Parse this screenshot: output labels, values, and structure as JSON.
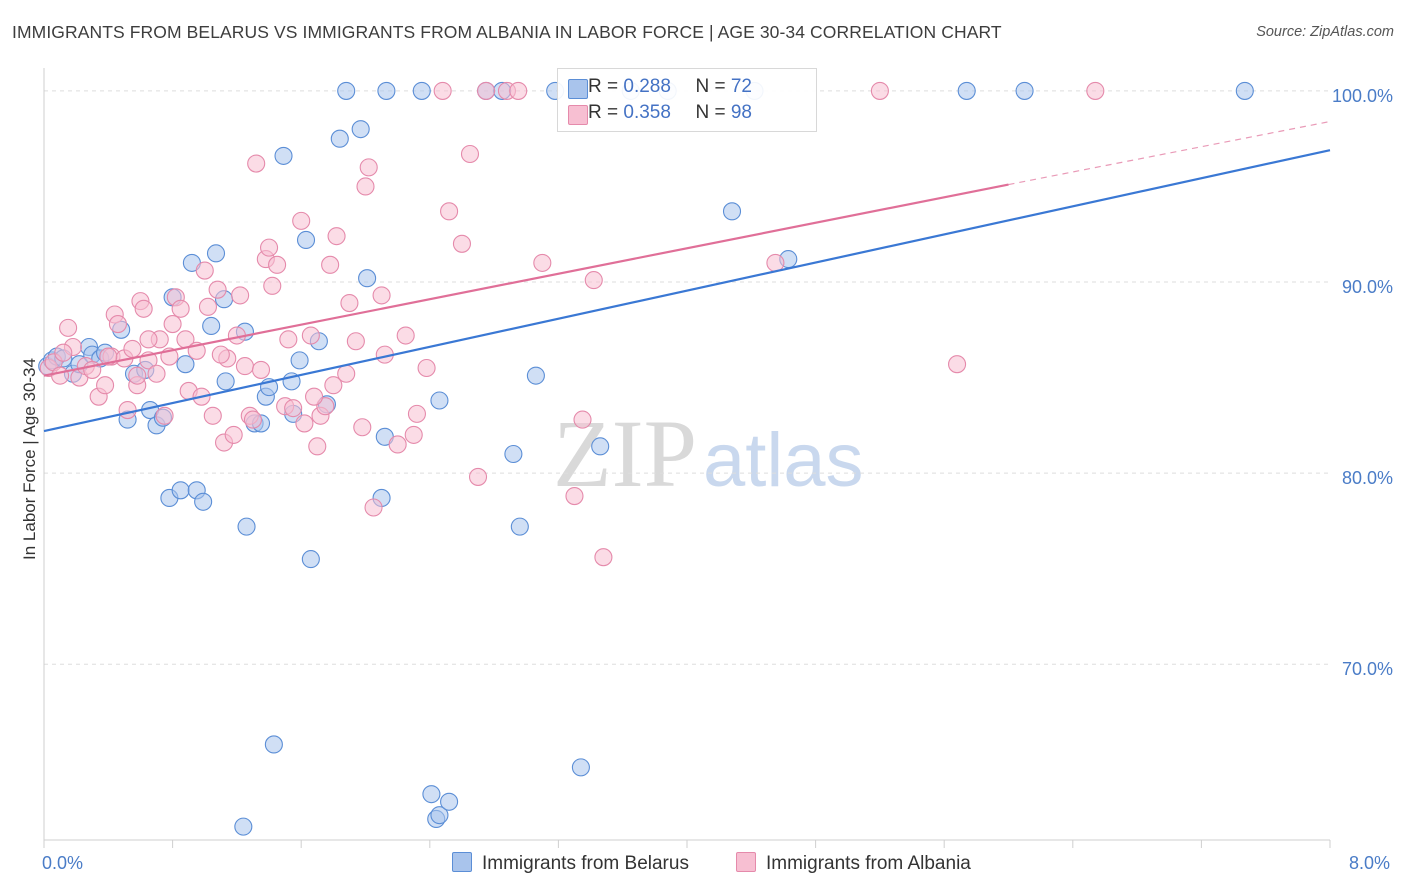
{
  "header": {
    "title": "IMMIGRANTS FROM BELARUS VS IMMIGRANTS FROM ALBANIA IN LABOR FORCE | AGE 30-34 CORRELATION CHART",
    "source": "Source: ZipAtlas.com"
  },
  "legend": {
    "belarus": {
      "r_label": "R = ",
      "r_value": "0.288",
      "n_label": "N = ",
      "n_value": "72"
    },
    "albania": {
      "r_label": "R = ",
      "r_value": "0.358",
      "n_label": "N = ",
      "n_value": "98"
    }
  },
  "watermark": {
    "zip": "ZIP",
    "atlas": "atlas"
  },
  "colors": {
    "belarus_fill": "#a9c4ec",
    "belarus_stroke": "#5b8ed6",
    "belarus_line": "#3a78d4",
    "albania_fill": "#f7bfd2",
    "albania_stroke": "#e58aab",
    "albania_line": "#e06f98",
    "axis_label": "#4a7cc7",
    "grid": "#dddddd"
  },
  "chart_data": {
    "type": "scatter",
    "title": "IMMIGRANTS FROM BELARUS VS IMMIGRANTS FROM ALBANIA IN LABOR FORCE | AGE 30-34 CORRELATION CHART",
    "xlabel": "",
    "ylabel": "In Labor Force | Age 30-34",
    "xlim": [
      0,
      8
    ],
    "ylim": [
      60.8,
      101.2
    ],
    "x_tick_labels": [
      "0.0%",
      "8.0%"
    ],
    "y_ticks": [
      70,
      80,
      90,
      100
    ],
    "y_tick_labels": [
      "70.0%",
      "80.0%",
      "90.0%",
      "100.0%"
    ],
    "grid": true,
    "legend_position": "top-center",
    "series": [
      {
        "name": "Immigrants from Belarus",
        "r": 0.288,
        "n": 72,
        "trend": {
          "x0": 0,
          "y0": 82.2,
          "x1": 8,
          "y1": 96.9
        },
        "points": [
          [
            0.02,
            85.6
          ],
          [
            0.05,
            85.9
          ],
          [
            0.08,
            86.1
          ],
          [
            0.12,
            86.0
          ],
          [
            0.18,
            85.2
          ],
          [
            0.22,
            85.7
          ],
          [
            0.28,
            86.6
          ],
          [
            0.3,
            86.2
          ],
          [
            0.35,
            86.0
          ],
          [
            0.38,
            86.3
          ],
          [
            0.48,
            87.5
          ],
          [
            0.52,
            82.8
          ],
          [
            0.56,
            85.2
          ],
          [
            0.63,
            85.4
          ],
          [
            0.66,
            83.3
          ],
          [
            0.7,
            82.5
          ],
          [
            0.74,
            82.9
          ],
          [
            0.78,
            78.7
          ],
          [
            0.8,
            89.2
          ],
          [
            0.85,
            79.1
          ],
          [
            0.88,
            85.7
          ],
          [
            0.92,
            91.0
          ],
          [
            0.95,
            79.1
          ],
          [
            0.99,
            78.5
          ],
          [
            1.04,
            87.7
          ],
          [
            1.07,
            91.5
          ],
          [
            1.12,
            89.1
          ],
          [
            1.13,
            84.8
          ],
          [
            1.24,
            61.5
          ],
          [
            1.25,
            87.4
          ],
          [
            1.26,
            77.2
          ],
          [
            1.31,
            82.6
          ],
          [
            1.35,
            82.6
          ],
          [
            1.38,
            84.0
          ],
          [
            1.4,
            84.5
          ],
          [
            1.43,
            65.8
          ],
          [
            1.49,
            96.6
          ],
          [
            1.54,
            84.8
          ],
          [
            1.55,
            83.1
          ],
          [
            1.59,
            85.9
          ],
          [
            1.63,
            92.2
          ],
          [
            1.66,
            75.5
          ],
          [
            1.71,
            86.9
          ],
          [
            1.76,
            83.6
          ],
          [
            1.84,
            97.5
          ],
          [
            1.88,
            100.0
          ],
          [
            1.97,
            98.0
          ],
          [
            2.01,
            90.2
          ],
          [
            2.1,
            78.7
          ],
          [
            2.12,
            81.9
          ],
          [
            2.13,
            100.0
          ],
          [
            2.35,
            100.0
          ],
          [
            2.41,
            63.2
          ],
          [
            2.44,
            61.9
          ],
          [
            2.46,
            62.1
          ],
          [
            2.46,
            83.8
          ],
          [
            2.52,
            62.8
          ],
          [
            2.75,
            100.0
          ],
          [
            2.85,
            100.0
          ],
          [
            2.92,
            81.0
          ],
          [
            2.96,
            77.2
          ],
          [
            3.06,
            85.1
          ],
          [
            3.18,
            100.0
          ],
          [
            3.34,
            64.6
          ],
          [
            3.46,
            81.4
          ],
          [
            3.65,
            100.0
          ],
          [
            3.88,
            100.0
          ],
          [
            4.28,
            93.7
          ],
          [
            4.42,
            100.0
          ],
          [
            4.63,
            91.2
          ],
          [
            5.74,
            100.0
          ],
          [
            6.1,
            100.0
          ],
          [
            7.47,
            100.0
          ]
        ]
      },
      {
        "name": "Immigrants from Albania",
        "r": 0.358,
        "n": 98,
        "trend": {
          "x0": 0,
          "y0": 85.1,
          "x1": 6.0,
          "y1": 95.1,
          "dash_x1": 8,
          "dash_y1": 98.4
        },
        "points": [
          [
            0.03,
            85.5
          ],
          [
            0.06,
            85.8
          ],
          [
            0.1,
            85.1
          ],
          [
            0.15,
            87.6
          ],
          [
            0.18,
            86.6
          ],
          [
            0.22,
            85.0
          ],
          [
            0.26,
            85.6
          ],
          [
            0.3,
            85.4
          ],
          [
            0.34,
            84.0
          ],
          [
            0.38,
            84.6
          ],
          [
            0.42,
            86.1
          ],
          [
            0.44,
            88.3
          ],
          [
            0.46,
            87.8
          ],
          [
            0.5,
            86.0
          ],
          [
            0.52,
            83.3
          ],
          [
            0.55,
            86.5
          ],
          [
            0.58,
            84.6
          ],
          [
            0.6,
            89.0
          ],
          [
            0.62,
            88.6
          ],
          [
            0.65,
            85.9
          ],
          [
            0.7,
            85.2
          ],
          [
            0.72,
            87.0
          ],
          [
            0.75,
            83.0
          ],
          [
            0.78,
            86.1
          ],
          [
            0.8,
            87.8
          ],
          [
            0.82,
            89.2
          ],
          [
            0.85,
            88.6
          ],
          [
            0.88,
            87.0
          ],
          [
            0.9,
            84.3
          ],
          [
            0.95,
            86.4
          ],
          [
            0.98,
            84.0
          ],
          [
            1.0,
            90.6
          ],
          [
            1.02,
            88.7
          ],
          [
            1.05,
            83.0
          ],
          [
            1.08,
            89.6
          ],
          [
            1.12,
            81.6
          ],
          [
            1.14,
            86.0
          ],
          [
            1.18,
            82.0
          ],
          [
            1.2,
            87.2
          ],
          [
            1.22,
            89.3
          ],
          [
            1.25,
            85.6
          ],
          [
            1.28,
            83.0
          ],
          [
            1.32,
            96.2
          ],
          [
            1.35,
            85.4
          ],
          [
            1.38,
            91.2
          ],
          [
            1.4,
            91.8
          ],
          [
            1.42,
            89.8
          ],
          [
            1.45,
            90.9
          ],
          [
            1.5,
            83.5
          ],
          [
            1.52,
            87.0
          ],
          [
            1.55,
            83.4
          ],
          [
            1.6,
            93.2
          ],
          [
            1.62,
            82.6
          ],
          [
            1.66,
            87.2
          ],
          [
            1.7,
            81.4
          ],
          [
            1.72,
            83.0
          ],
          [
            1.75,
            83.5
          ],
          [
            1.78,
            90.9
          ],
          [
            1.8,
            84.6
          ],
          [
            1.82,
            92.4
          ],
          [
            1.88,
            85.2
          ],
          [
            1.9,
            88.9
          ],
          [
            1.94,
            86.9
          ],
          [
            1.98,
            82.4
          ],
          [
            2.0,
            95.0
          ],
          [
            2.02,
            96.0
          ],
          [
            2.05,
            78.2
          ],
          [
            2.1,
            89.3
          ],
          [
            2.12,
            86.2
          ],
          [
            2.2,
            81.5
          ],
          [
            2.25,
            87.2
          ],
          [
            2.3,
            82.0
          ],
          [
            2.32,
            83.1
          ],
          [
            2.38,
            85.5
          ],
          [
            2.48,
            100.0
          ],
          [
            2.52,
            93.7
          ],
          [
            2.6,
            92.0
          ],
          [
            2.65,
            96.7
          ],
          [
            2.7,
            79.8
          ],
          [
            2.75,
            100.0
          ],
          [
            2.88,
            100.0
          ],
          [
            2.95,
            100.0
          ],
          [
            3.1,
            91.0
          ],
          [
            3.3,
            78.8
          ],
          [
            3.35,
            82.8
          ],
          [
            3.42,
            90.1
          ],
          [
            3.48,
            75.6
          ],
          [
            5.2,
            100.0
          ],
          [
            5.68,
            85.7
          ],
          [
            6.54,
            100.0
          ],
          [
            4.55,
            91.0
          ],
          [
            0.12,
            86.3
          ],
          [
            0.65,
            87.0
          ],
          [
            1.1,
            86.2
          ],
          [
            1.3,
            82.8
          ],
          [
            1.68,
            84.0
          ],
          [
            0.4,
            86.1
          ],
          [
            0.58,
            85.1
          ]
        ]
      }
    ]
  },
  "axes": {
    "y_title": "In Labor Force | Age 30-34",
    "x_left": "0.0%",
    "x_right": "8.0%",
    "y_labels": {
      "y100": "100.0%",
      "y90": "90.0%",
      "y80": "80.0%",
      "y70": "70.0%"
    }
  },
  "bottom_legend": {
    "belarus": "Immigrants from Belarus",
    "albania": "Immigrants from Albania"
  }
}
